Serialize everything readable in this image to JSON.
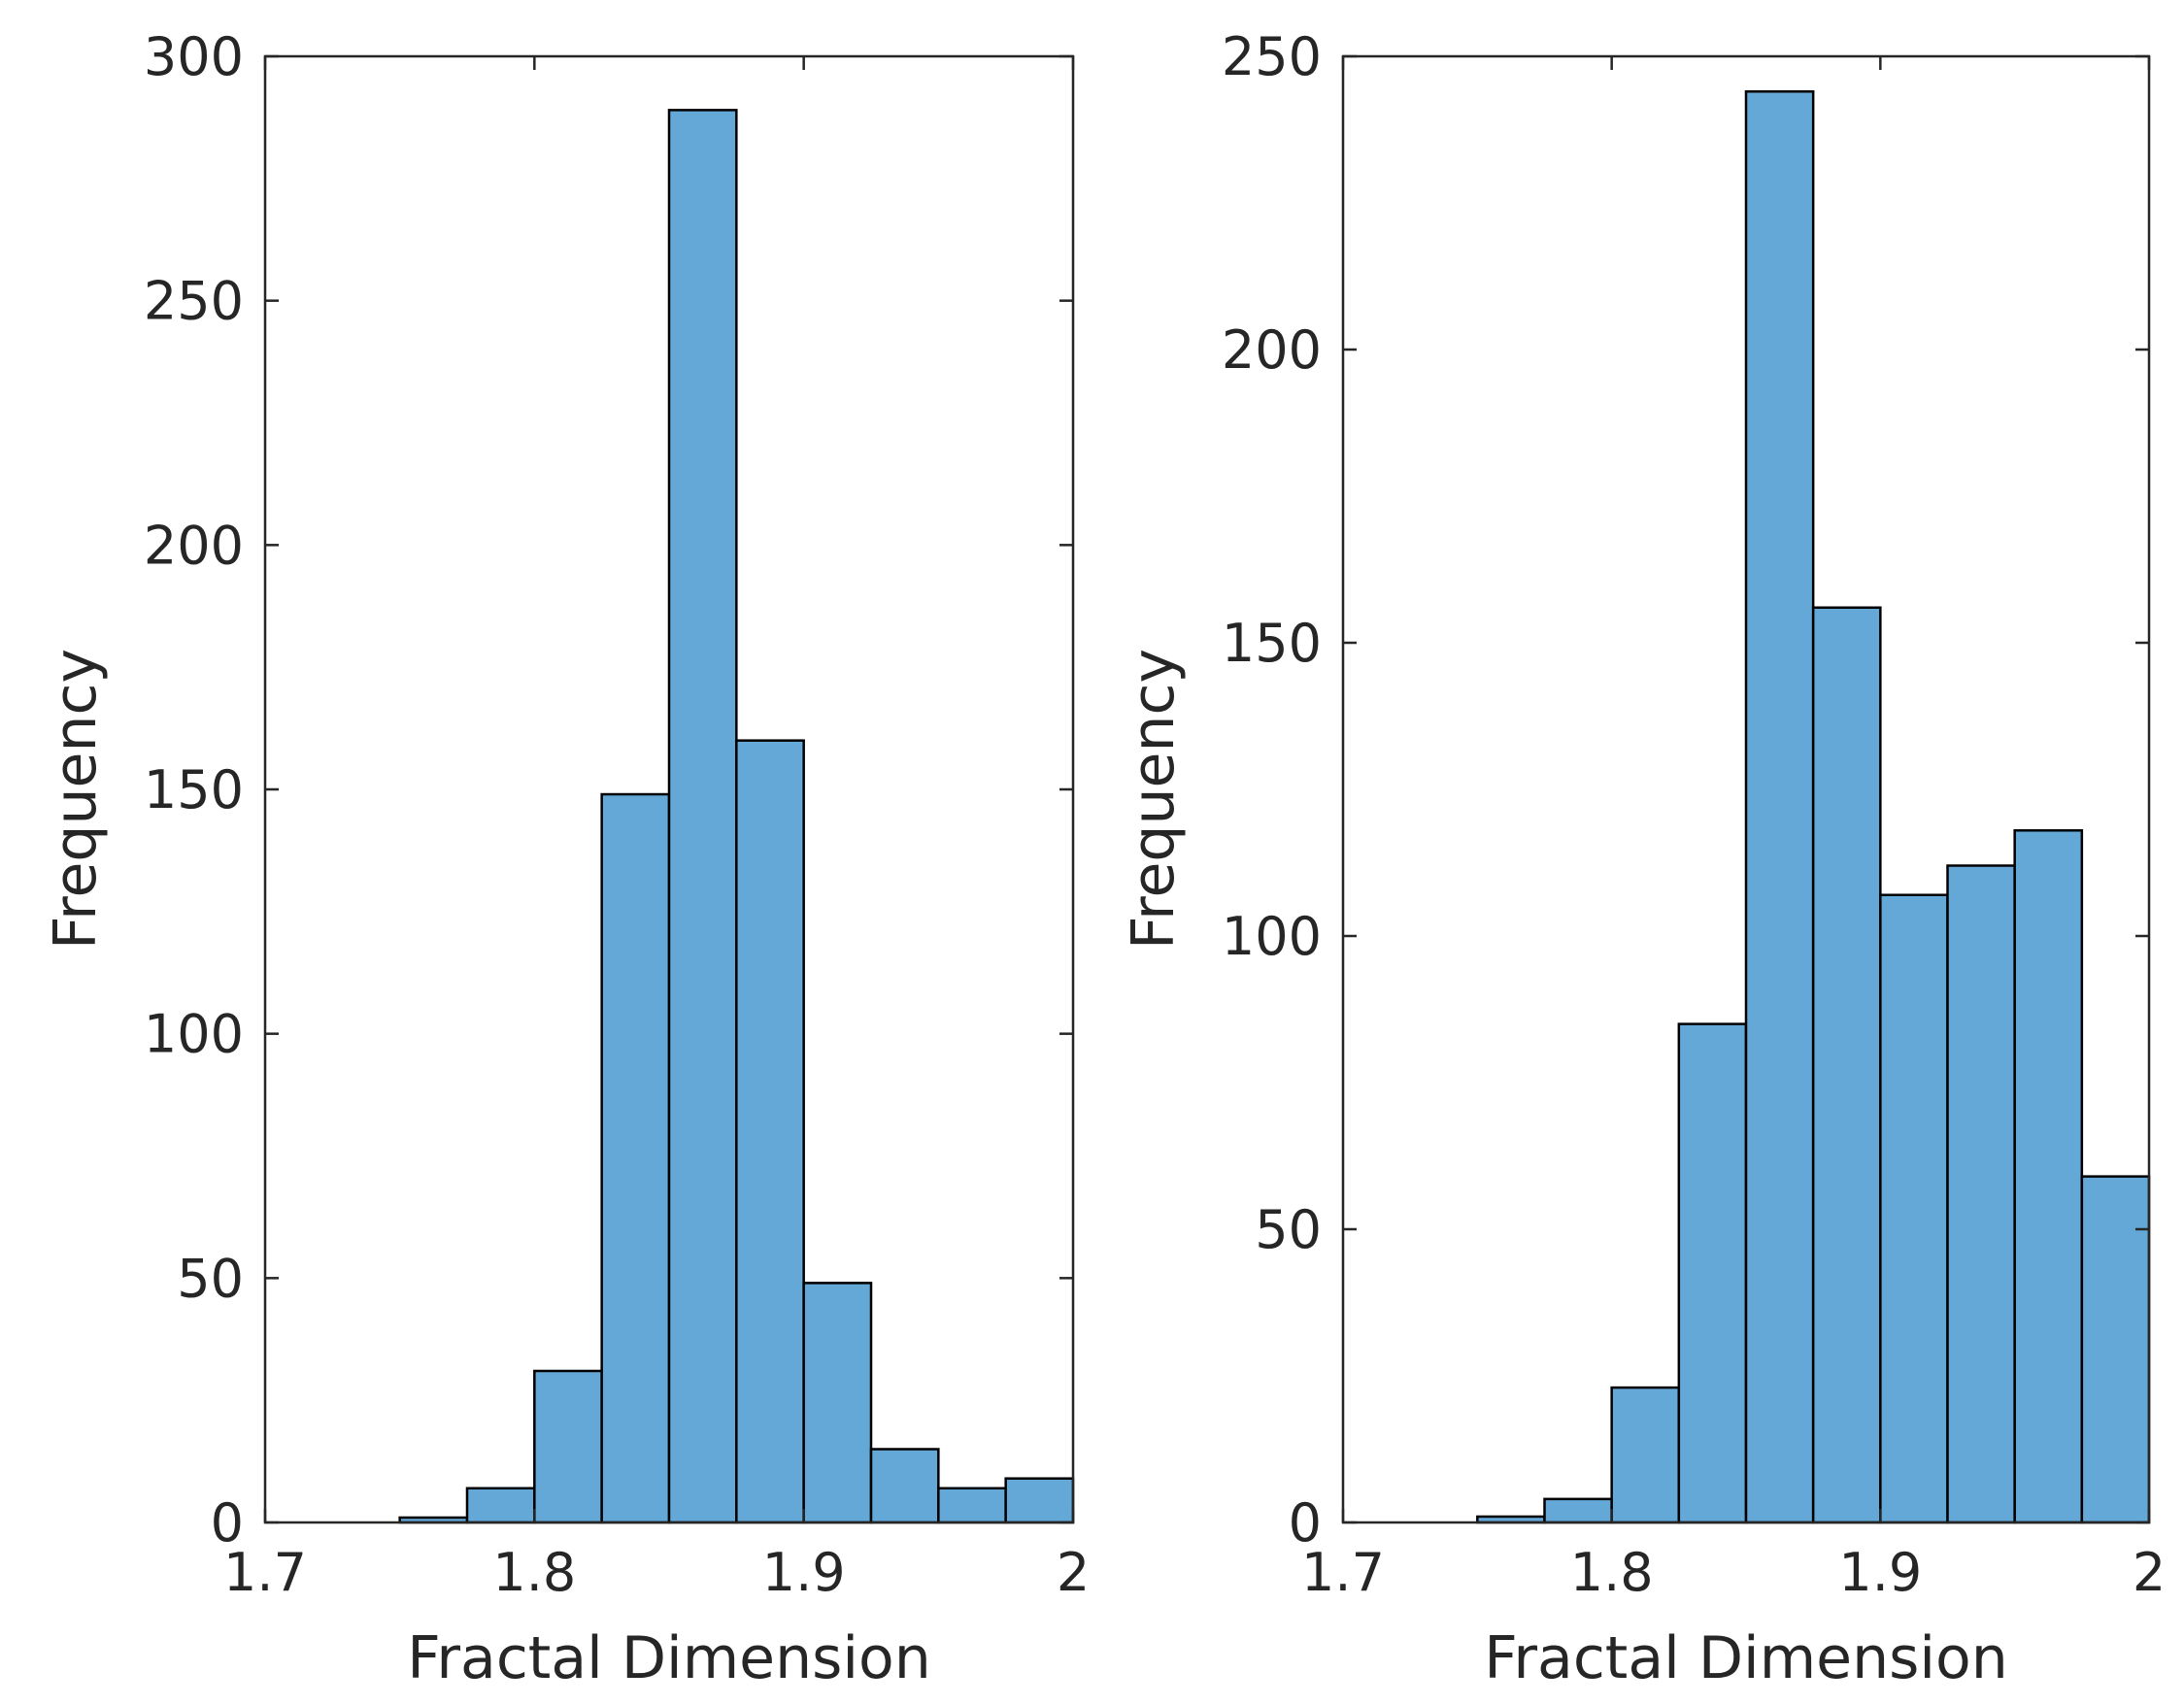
{
  "colors": {
    "bar_fill": "#64a8d7",
    "bar_edge": "#000000",
    "axis": "#262626",
    "background": "#ffffff"
  },
  "chart_data": [
    {
      "type": "bar",
      "subtype": "histogram",
      "title": "",
      "xlabel": "Fractal Dimension",
      "ylabel": "Frequency",
      "xlim": [
        1.7,
        2.0
      ],
      "ylim": [
        0,
        300
      ],
      "xticks": [
        "1.7",
        "1.8",
        "1.9",
        "2"
      ],
      "xtick_values": [
        1.7,
        1.8,
        1.9,
        2.0
      ],
      "yticks": [
        "0",
        "50",
        "100",
        "150",
        "200",
        "250",
        "300"
      ],
      "ytick_values": [
        0,
        50,
        100,
        150,
        200,
        250,
        300
      ],
      "bin_edges": [
        1.7,
        1.725,
        1.75,
        1.775,
        1.8,
        1.825,
        1.85,
        1.875,
        1.9,
        1.925,
        1.95,
        1.975,
        2.0
      ],
      "values": [
        0,
        0,
        1,
        7,
        31,
        149,
        289,
        160,
        49,
        15,
        7,
        9
      ]
    },
    {
      "type": "bar",
      "subtype": "histogram",
      "title": "",
      "xlabel": "Fractal Dimension",
      "ylabel": "Frequency",
      "xlim": [
        1.7,
        2.0
      ],
      "ylim": [
        0,
        250
      ],
      "xticks": [
        "1.7",
        "1.8",
        "1.9",
        "2"
      ],
      "xtick_values": [
        1.7,
        1.8,
        1.9,
        2.0
      ],
      "yticks": [
        "0",
        "50",
        "100",
        "150",
        "200",
        "250"
      ],
      "ytick_values": [
        0,
        50,
        100,
        150,
        200,
        250
      ],
      "bin_edges": [
        1.7,
        1.725,
        1.75,
        1.775,
        1.8,
        1.825,
        1.85,
        1.875,
        1.9,
        1.925,
        1.95,
        1.975,
        2.0
      ],
      "values": [
        0,
        0,
        1,
        4,
        23,
        85,
        244,
        156,
        107,
        112,
        118,
        59
      ]
    }
  ]
}
